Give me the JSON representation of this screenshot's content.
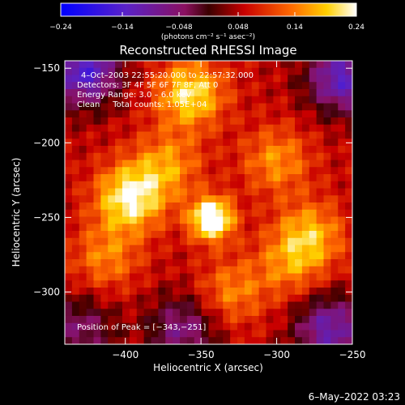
{
  "chart_data": {
    "type": "heatmap",
    "title": "Reconstructed RHESSI Image",
    "xlabel": "Heliocentric X (arcsec)",
    "ylabel": "Heliocentric Y (arcsec)",
    "xlim": [
      -440,
      -250
    ],
    "ylim": [
      -335,
      -145
    ],
    "x_ticks": [
      -400,
      -350,
      -300,
      -250
    ],
    "x_tick_labels": [
      "−400",
      "−350",
      "−300",
      "−250"
    ],
    "y_ticks": [
      -150,
      -200,
      -250,
      -300
    ],
    "y_tick_labels": [
      "−150",
      "−200",
      "−250",
      "−300"
    ],
    "colorbar": {
      "range": [
        -0.24,
        0.24
      ],
      "ticks": [
        -0.24,
        -0.14,
        -0.048,
        0.048,
        0.14,
        0.24
      ],
      "tick_labels": [
        "−0.24",
        "−0.14",
        "−0.048",
        "0.048",
        "0.14",
        "0.24"
      ],
      "unit_label": "(photons cm⁻² s⁻¹ asec⁻²)",
      "colormap": "blue-purple-red-yellow-white"
    },
    "info_lines": [
      "4–Oct–2003 22:55:20.000 to 22:57:32.000",
      "Detectors: 3F 4F 5F 6F 7F 8F, Att 0",
      "Energy Range: 3.0 – 6.0 keV",
      "Clean     Total counts: 1.05E+04"
    ],
    "peak_label": "Position of Peak = [−343,−251]",
    "peak": {
      "x": -343,
      "y": -251,
      "value": 0.24
    },
    "features": [
      {
        "x": -343,
        "y": -251,
        "value": 0.24
      },
      {
        "x": -397,
        "y": -237,
        "value": 0.18
      },
      {
        "x": -357,
        "y": -167,
        "value": 0.16
      },
      {
        "x": -278,
        "y": -262,
        "value": 0.12
      },
      {
        "x": -300,
        "y": -212,
        "value": 0.1
      },
      {
        "x": -413,
        "y": -277,
        "value": 0.09
      },
      {
        "x": -330,
        "y": -300,
        "value": 0.09
      },
      {
        "x": -372,
        "y": -215,
        "value": 0.1
      },
      {
        "x": -292,
        "y": -282,
        "value": 0.08
      },
      {
        "x": -427,
        "y": -152,
        "value": -0.2
      },
      {
        "x": -257,
        "y": -157,
        "value": -0.18
      },
      {
        "x": -265,
        "y": -325,
        "value": -0.16
      },
      {
        "x": -362,
        "y": -325,
        "value": -0.12
      },
      {
        "x": -430,
        "y": -325,
        "value": -0.1
      }
    ]
  },
  "footer": {
    "timestamp": "6–May–2022 03:23"
  }
}
